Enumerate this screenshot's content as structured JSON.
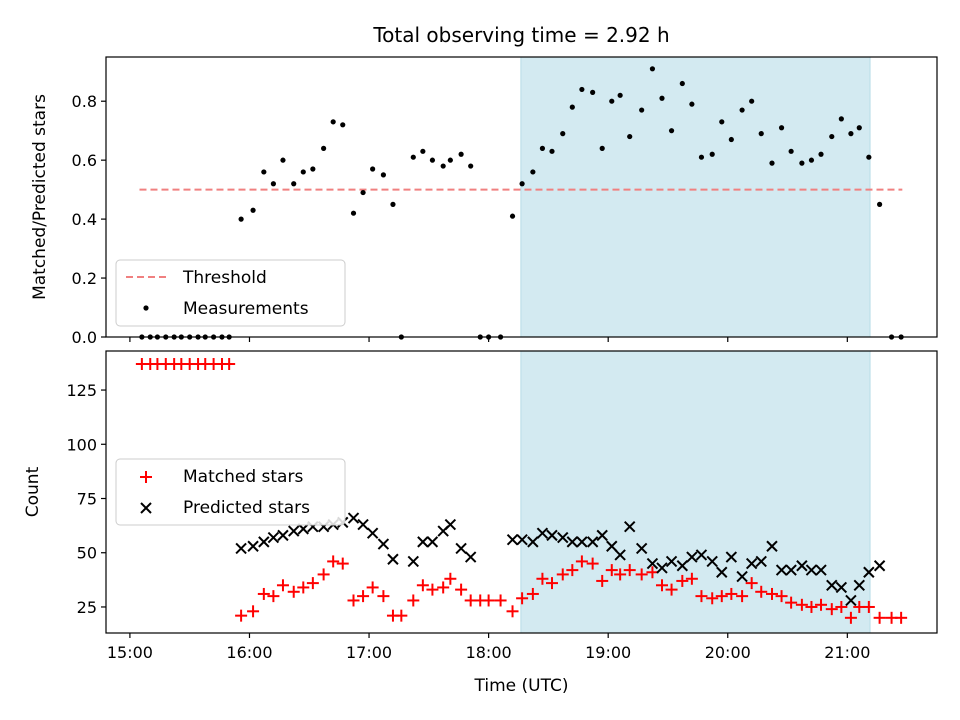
{
  "chart_data": [
    {
      "type": "scatter",
      "title": "Total observing time = 2.92 h",
      "xlabel": "",
      "ylabel": "Matched/Predicted stars",
      "xlim": [
        14.8,
        21.75
      ],
      "ylim": [
        0,
        0.95
      ],
      "yticks": [
        0.0,
        0.2,
        0.4,
        0.6,
        0.8
      ],
      "ytick_labels": [
        "0.0",
        "0.2",
        "0.4",
        "0.6",
        "0.8"
      ],
      "xticks": [
        15,
        16,
        17,
        18,
        19,
        20,
        21
      ],
      "shaded_interval": [
        18.27,
        21.19
      ],
      "shaded_color": "#d3eaf1",
      "threshold": {
        "name": "Threshold",
        "y": 0.5,
        "x_range": [
          15.08,
          21.46
        ],
        "color": "#f08080"
      },
      "legend": {
        "placement": "lower-left",
        "entries": [
          "Threshold",
          "Measurements"
        ]
      },
      "series": [
        {
          "name": "Measurements",
          "color": "#000000",
          "points": [
            [
              15.1,
              0
            ],
            [
              15.17,
              0
            ],
            [
              15.23,
              0
            ],
            [
              15.3,
              0
            ],
            [
              15.37,
              0
            ],
            [
              15.43,
              0
            ],
            [
              15.5,
              0
            ],
            [
              15.57,
              0
            ],
            [
              15.63,
              0
            ],
            [
              15.7,
              0
            ],
            [
              15.77,
              0
            ],
            [
              15.83,
              0
            ],
            [
              15.93,
              0.4
            ],
            [
              16.03,
              0.43
            ],
            [
              16.12,
              0.56
            ],
            [
              16.2,
              0.52
            ],
            [
              16.28,
              0.6
            ],
            [
              16.37,
              0.52
            ],
            [
              16.45,
              0.56
            ],
            [
              16.53,
              0.57
            ],
            [
              16.62,
              0.64
            ],
            [
              16.7,
              0.73
            ],
            [
              16.78,
              0.72
            ],
            [
              16.87,
              0.42
            ],
            [
              16.95,
              0.49
            ],
            [
              17.03,
              0.57
            ],
            [
              17.12,
              0.55
            ],
            [
              17.2,
              0.45
            ],
            [
              17.27,
              0
            ],
            [
              17.37,
              0.61
            ],
            [
              17.45,
              0.63
            ],
            [
              17.53,
              0.6
            ],
            [
              17.62,
              0.58
            ],
            [
              17.68,
              0.6
            ],
            [
              17.77,
              0.62
            ],
            [
              17.85,
              0.58
            ],
            [
              17.93,
              0
            ],
            [
              18.0,
              0
            ],
            [
              18.1,
              0
            ],
            [
              18.2,
              0.41
            ],
            [
              18.28,
              0.52
            ],
            [
              18.37,
              0.56
            ],
            [
              18.45,
              0.64
            ],
            [
              18.53,
              0.63
            ],
            [
              18.62,
              0.69
            ],
            [
              18.7,
              0.78
            ],
            [
              18.78,
              0.84
            ],
            [
              18.87,
              0.83
            ],
            [
              18.95,
              0.64
            ],
            [
              19.03,
              0.8
            ],
            [
              19.1,
              0.82
            ],
            [
              19.18,
              0.68
            ],
            [
              19.28,
              0.77
            ],
            [
              19.37,
              0.91
            ],
            [
              19.45,
              0.81
            ],
            [
              19.53,
              0.7
            ],
            [
              19.62,
              0.86
            ],
            [
              19.7,
              0.79
            ],
            [
              19.78,
              0.61
            ],
            [
              19.87,
              0.62
            ],
            [
              19.95,
              0.73
            ],
            [
              20.03,
              0.67
            ],
            [
              20.12,
              0.77
            ],
            [
              20.2,
              0.8
            ],
            [
              20.28,
              0.69
            ],
            [
              20.37,
              0.59
            ],
            [
              20.45,
              0.71
            ],
            [
              20.53,
              0.63
            ],
            [
              20.62,
              0.59
            ],
            [
              20.7,
              0.6
            ],
            [
              20.78,
              0.62
            ],
            [
              20.87,
              0.68
            ],
            [
              20.95,
              0.74
            ],
            [
              21.03,
              0.69
            ],
            [
              21.1,
              0.71
            ],
            [
              21.18,
              0.61
            ],
            [
              21.27,
              0.45
            ],
            [
              21.37,
              0
            ],
            [
              21.45,
              0
            ]
          ]
        }
      ]
    },
    {
      "type": "scatter",
      "title": "",
      "xlabel": "Time (UTC)",
      "ylabel": "Count",
      "xlim": [
        14.8,
        21.75
      ],
      "ylim": [
        13,
        143
      ],
      "yticks": [
        25,
        50,
        75,
        100,
        125
      ],
      "ytick_labels": [
        "25",
        "50",
        "75",
        "100",
        "125"
      ],
      "xticks": [
        15,
        16,
        17,
        18,
        19,
        20,
        21
      ],
      "xtick_labels": [
        "15:00",
        "16:00",
        "17:00",
        "18:00",
        "19:00",
        "20:00",
        "21:00"
      ],
      "shaded_interval": [
        18.27,
        21.19
      ],
      "shaded_color": "#d3eaf1",
      "legend": {
        "placement": "center-left",
        "entries": [
          "Matched stars",
          "Predicted stars"
        ]
      },
      "series": [
        {
          "name": "Matched stars",
          "marker": "plus",
          "color": "#ff0000",
          "points": [
            [
              15.1,
              137
            ],
            [
              15.17,
              137
            ],
            [
              15.23,
              137
            ],
            [
              15.3,
              137
            ],
            [
              15.37,
              137
            ],
            [
              15.43,
              137
            ],
            [
              15.5,
              137
            ],
            [
              15.57,
              137
            ],
            [
              15.63,
              137
            ],
            [
              15.7,
              137
            ],
            [
              15.77,
              137
            ],
            [
              15.83,
              137
            ],
            [
              15.93,
              21
            ],
            [
              16.03,
              23
            ],
            [
              16.12,
              31
            ],
            [
              16.2,
              30
            ],
            [
              16.28,
              35
            ],
            [
              16.37,
              32
            ],
            [
              16.45,
              34
            ],
            [
              16.53,
              36
            ],
            [
              16.62,
              40
            ],
            [
              16.7,
              46
            ],
            [
              16.78,
              45
            ],
            [
              16.87,
              28
            ],
            [
              16.95,
              30
            ],
            [
              17.03,
              34
            ],
            [
              17.12,
              30
            ],
            [
              17.2,
              21
            ],
            [
              17.27,
              21
            ],
            [
              17.37,
              28
            ],
            [
              17.45,
              35
            ],
            [
              17.53,
              33
            ],
            [
              17.62,
              34
            ],
            [
              17.68,
              38
            ],
            [
              17.77,
              33
            ],
            [
              17.85,
              28
            ],
            [
              17.93,
              28
            ],
            [
              18.0,
              28
            ],
            [
              18.1,
              28
            ],
            [
              18.2,
              23
            ],
            [
              18.28,
              29
            ],
            [
              18.37,
              31
            ],
            [
              18.45,
              38
            ],
            [
              18.53,
              36
            ],
            [
              18.62,
              40
            ],
            [
              18.7,
              42
            ],
            [
              18.78,
              46
            ],
            [
              18.87,
              45
            ],
            [
              18.95,
              37
            ],
            [
              19.03,
              42
            ],
            [
              19.1,
              40
            ],
            [
              19.18,
              42
            ],
            [
              19.28,
              40
            ],
            [
              19.37,
              41
            ],
            [
              19.45,
              35
            ],
            [
              19.53,
              33
            ],
            [
              19.62,
              37
            ],
            [
              19.7,
              38
            ],
            [
              19.78,
              30
            ],
            [
              19.87,
              29
            ],
            [
              19.95,
              30
            ],
            [
              20.03,
              31
            ],
            [
              20.12,
              30
            ],
            [
              20.2,
              36
            ],
            [
              20.28,
              32
            ],
            [
              20.37,
              31
            ],
            [
              20.45,
              30
            ],
            [
              20.53,
              27
            ],
            [
              20.62,
              26
            ],
            [
              20.7,
              25
            ],
            [
              20.78,
              26
            ],
            [
              20.87,
              24
            ],
            [
              20.95,
              25
            ],
            [
              21.03,
              20
            ],
            [
              21.1,
              25
            ],
            [
              21.18,
              25
            ],
            [
              21.27,
              20
            ],
            [
              21.37,
              20
            ],
            [
              21.45,
              20
            ]
          ]
        },
        {
          "name": "Predicted stars",
          "marker": "x",
          "color": "#000000",
          "points": [
            [
              15.93,
              52
            ],
            [
              16.03,
              53
            ],
            [
              16.12,
              55
            ],
            [
              16.2,
              57
            ],
            [
              16.28,
              58
            ],
            [
              16.37,
              60
            ],
            [
              16.45,
              61
            ],
            [
              16.53,
              62
            ],
            [
              16.62,
              62
            ],
            [
              16.7,
              63
            ],
            [
              16.78,
              64
            ],
            [
              16.87,
              66
            ],
            [
              16.95,
              63
            ],
            [
              17.03,
              59
            ],
            [
              17.12,
              54
            ],
            [
              17.2,
              47
            ],
            [
              17.37,
              46
            ],
            [
              17.45,
              55
            ],
            [
              17.53,
              55
            ],
            [
              17.62,
              60
            ],
            [
              17.68,
              63
            ],
            [
              17.77,
              52
            ],
            [
              17.85,
              48
            ],
            [
              18.2,
              56
            ],
            [
              18.28,
              56
            ],
            [
              18.37,
              55
            ],
            [
              18.45,
              59
            ],
            [
              18.53,
              58
            ],
            [
              18.62,
              57
            ],
            [
              18.7,
              55
            ],
            [
              18.78,
              55
            ],
            [
              18.87,
              55
            ],
            [
              18.95,
              58
            ],
            [
              19.03,
              53
            ],
            [
              19.1,
              49
            ],
            [
              19.18,
              62
            ],
            [
              19.28,
              52
            ],
            [
              19.37,
              45
            ],
            [
              19.45,
              43
            ],
            [
              19.53,
              46
            ],
            [
              19.62,
              44
            ],
            [
              19.7,
              48
            ],
            [
              19.78,
              49
            ],
            [
              19.87,
              46
            ],
            [
              19.95,
              41
            ],
            [
              20.03,
              48
            ],
            [
              20.12,
              39
            ],
            [
              20.2,
              45
            ],
            [
              20.28,
              46
            ],
            [
              20.37,
              53
            ],
            [
              20.45,
              42
            ],
            [
              20.53,
              42
            ],
            [
              20.62,
              44
            ],
            [
              20.7,
              42
            ],
            [
              20.78,
              42
            ],
            [
              20.87,
              35
            ],
            [
              20.95,
              34
            ],
            [
              21.03,
              28
            ],
            [
              21.1,
              35
            ],
            [
              21.18,
              41
            ],
            [
              21.27,
              44
            ]
          ]
        }
      ]
    }
  ]
}
